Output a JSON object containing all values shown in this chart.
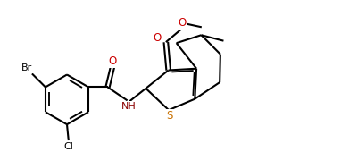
{
  "bg_color": "#ffffff",
  "bond_color": "#000000",
  "hetero_colors": {
    "O": "#cc0000",
    "N": "#8b0000",
    "S": "#c87000",
    "Br": "#000000",
    "Cl": "#000000"
  },
  "figsize": [
    3.82,
    1.7
  ],
  "dpi": 100
}
